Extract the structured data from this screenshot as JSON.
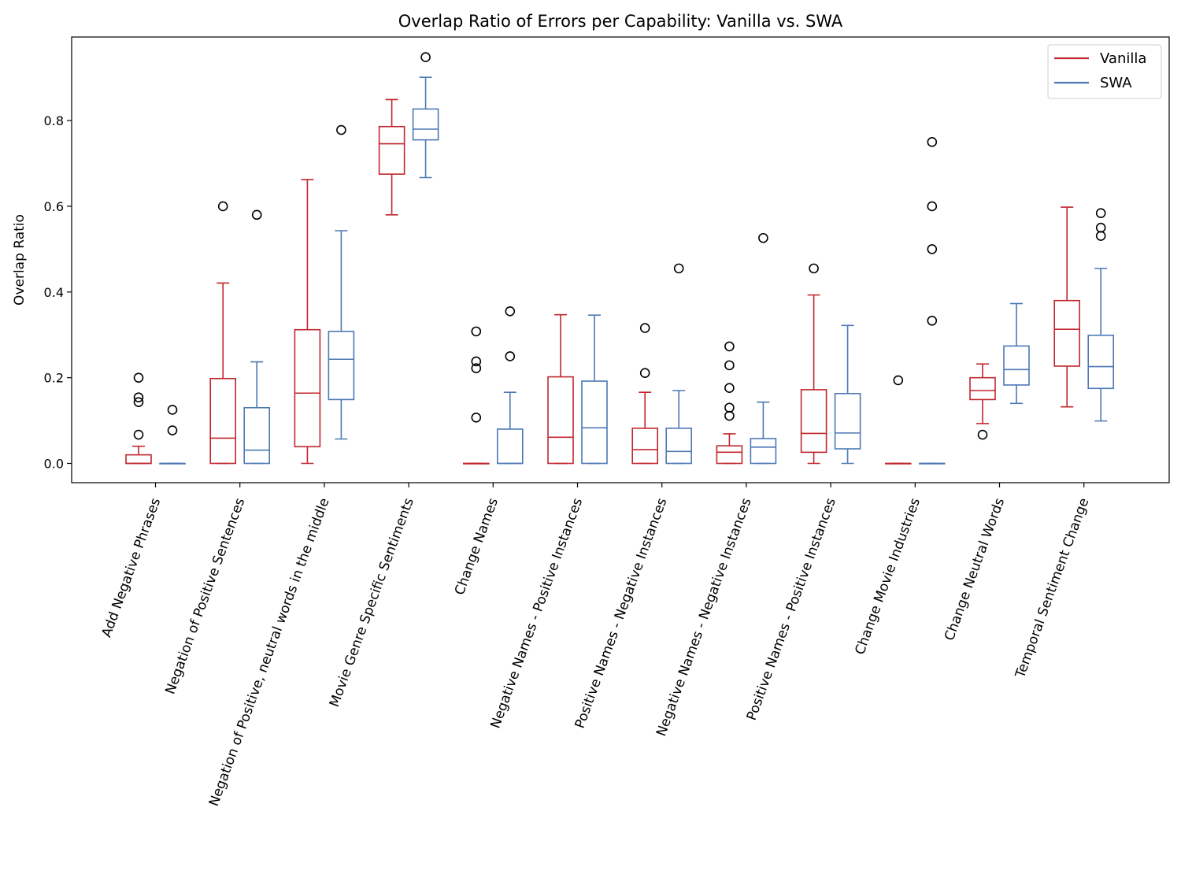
{
  "chart_data": {
    "type": "box",
    "title": "Overlap Ratio of Errors per Capability: Vanilla vs. SWA",
    "ylabel": "Overlap Ratio",
    "xlabel": "",
    "ylim": [
      -0.045,
      0.995
    ],
    "yticks": [
      0.0,
      0.2,
      0.4,
      0.6,
      0.8
    ],
    "grid": false,
    "legend_position": "top-right",
    "categories": [
      "Add Negative Phrases",
      "Negation of Positive Sentences",
      "Negation of Positive, neutral words in the middle",
      "Movie Genre Specific Sentiments",
      "Change Names",
      "Negative Names - Positive Instances",
      "Positive Names - Negative Instances",
      "Negative Names - Negative Instances",
      "Positive Names - Positive Instances",
      "Change Movie Industries",
      "Change Neutral Words",
      "Temporal Sentiment Change"
    ],
    "series": [
      {
        "name": "Vanilla",
        "color": "#c0262d",
        "boxes": [
          {
            "whislo": 0.0,
            "q1": 0.0,
            "med": 0.0,
            "q3": 0.02,
            "whishi": 0.04,
            "fliers": [
              0.067,
              0.143,
              0.154,
              0.2
            ]
          },
          {
            "whislo": 0.0,
            "q1": 0.0,
            "med": 0.059,
            "q3": 0.198,
            "whishi": 0.421,
            "fliers": [
              0.6
            ]
          },
          {
            "whislo": 0.0,
            "q1": 0.039,
            "med": 0.164,
            "q3": 0.312,
            "whishi": 0.662,
            "fliers": []
          },
          {
            "whislo": 0.58,
            "q1": 0.675,
            "med": 0.746,
            "q3": 0.786,
            "whishi": 0.849,
            "fliers": []
          },
          {
            "whislo": 0.0,
            "q1": 0.0,
            "med": 0.0,
            "q3": 0.0,
            "whishi": 0.0,
            "fliers": [
              0.107,
              0.222,
              0.238,
              0.308
            ]
          },
          {
            "whislo": 0.0,
            "q1": 0.0,
            "med": 0.061,
            "q3": 0.202,
            "whishi": 0.347,
            "fliers": []
          },
          {
            "whislo": 0.0,
            "q1": 0.0,
            "med": 0.032,
            "q3": 0.082,
            "whishi": 0.166,
            "fliers": [
              0.211,
              0.316
            ]
          },
          {
            "whislo": 0.0,
            "q1": 0.0,
            "med": 0.026,
            "q3": 0.041,
            "whishi": 0.069,
            "fliers": [
              0.111,
              0.13,
              0.176,
              0.229,
              0.273
            ]
          },
          {
            "whislo": 0.0,
            "q1": 0.026,
            "med": 0.07,
            "q3": 0.172,
            "whishi": 0.393,
            "fliers": [
              0.455
            ]
          },
          {
            "whislo": 0.0,
            "q1": 0.0,
            "med": 0.0,
            "q3": 0.0,
            "whishi": 0.0,
            "fliers": [
              0.194
            ]
          },
          {
            "whislo": 0.093,
            "q1": 0.149,
            "med": 0.17,
            "q3": 0.2,
            "whishi": 0.232,
            "fliers": [
              0.067
            ]
          },
          {
            "whislo": 0.132,
            "q1": 0.227,
            "med": 0.313,
            "q3": 0.38,
            "whishi": 0.598,
            "fliers": []
          }
        ]
      },
      {
        "name": "SWA",
        "color": "#4c78b5",
        "boxes": [
          {
            "whislo": 0.0,
            "q1": 0.0,
            "med": 0.0,
            "q3": 0.0,
            "whishi": 0.0,
            "fliers": [
              0.077,
              0.125
            ]
          },
          {
            "whislo": 0.0,
            "q1": 0.0,
            "med": 0.031,
            "q3": 0.13,
            "whishi": 0.237,
            "fliers": [
              0.58
            ]
          },
          {
            "whislo": 0.057,
            "q1": 0.149,
            "med": 0.243,
            "q3": 0.308,
            "whishi": 0.543,
            "fliers": [
              0.778
            ]
          },
          {
            "whislo": 0.667,
            "q1": 0.755,
            "med": 0.78,
            "q3": 0.827,
            "whishi": 0.901,
            "fliers": [
              0.948
            ]
          },
          {
            "whislo": 0.0,
            "q1": 0.0,
            "med": 0.0,
            "q3": 0.08,
            "whishi": 0.166,
            "fliers": [
              0.25,
              0.355
            ]
          },
          {
            "whislo": 0.0,
            "q1": 0.0,
            "med": 0.083,
            "q3": 0.192,
            "whishi": 0.346,
            "fliers": []
          },
          {
            "whislo": 0.0,
            "q1": 0.0,
            "med": 0.028,
            "q3": 0.082,
            "whishi": 0.17,
            "fliers": [
              0.455
            ]
          },
          {
            "whislo": 0.0,
            "q1": 0.0,
            "med": 0.038,
            "q3": 0.058,
            "whishi": 0.143,
            "fliers": [
              0.526
            ]
          },
          {
            "whislo": 0.0,
            "q1": 0.034,
            "med": 0.071,
            "q3": 0.163,
            "whishi": 0.322,
            "fliers": []
          },
          {
            "whislo": 0.0,
            "q1": 0.0,
            "med": 0.0,
            "q3": 0.0,
            "whishi": 0.0,
            "fliers": [
              0.333,
              0.5,
              0.6,
              0.75
            ]
          },
          {
            "whislo": 0.14,
            "q1": 0.183,
            "med": 0.219,
            "q3": 0.274,
            "whishi": 0.373,
            "fliers": []
          },
          {
            "whislo": 0.099,
            "q1": 0.175,
            "med": 0.226,
            "q3": 0.299,
            "whishi": 0.455,
            "fliers": [
              0.531,
              0.55,
              0.584
            ]
          }
        ]
      }
    ]
  }
}
